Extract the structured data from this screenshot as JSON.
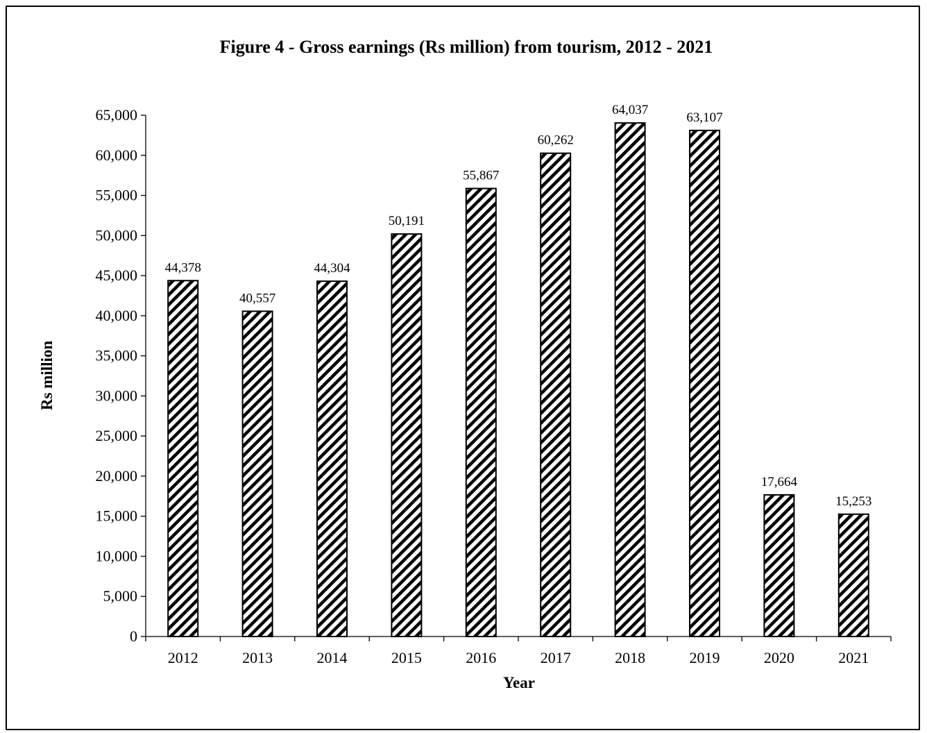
{
  "chart_data": {
    "type": "bar",
    "title": "Figure 4 - Gross earnings (Rs million)  from tourism, 2012 - 2021",
    "xlabel": "Year",
    "ylabel": "Rs million",
    "categories": [
      "2012",
      "2013",
      "2014",
      "2015",
      "2016",
      "2017",
      "2018",
      "2019",
      "2020",
      "2021"
    ],
    "values": [
      44378,
      40557,
      44304,
      50191,
      55867,
      60262,
      64037,
      63107,
      17664,
      15253
    ],
    "data_labels": [
      "44,378",
      "40,557",
      "44,304",
      "50,191",
      "55,867",
      "60,262",
      "64,037",
      "63,107",
      "17,664",
      "15,253"
    ],
    "ylim": [
      0,
      65000
    ],
    "yticks": [
      0,
      5000,
      10000,
      15000,
      20000,
      25000,
      30000,
      35000,
      40000,
      45000,
      50000,
      55000,
      60000,
      65000
    ],
    "ytick_labels": [
      "0",
      "5,000",
      "10,000",
      "15,000",
      "20,000",
      "25,000",
      "30,000",
      "35,000",
      "40,000",
      "45,000",
      "50,000",
      "55,000",
      "60,000",
      "65,000"
    ],
    "grid": false,
    "legend": "none",
    "bar_fill": "diagonal-hatch",
    "colors": {
      "bar_stroke": "#000000",
      "hatch": "#000000",
      "background": "#ffffff"
    }
  }
}
